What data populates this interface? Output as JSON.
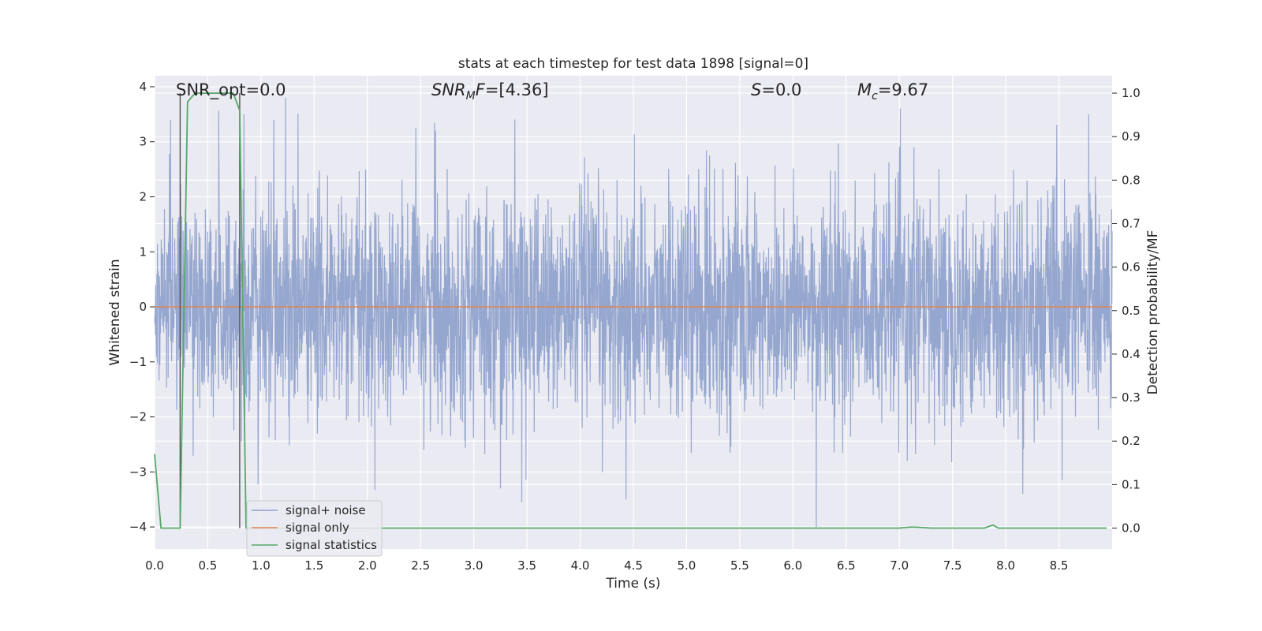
{
  "chart_data": {
    "type": "line",
    "title": "stats at each timestep for test data 1898 [signal=0]",
    "xlabel": "Time (s)",
    "ylabel": "Whitened strain",
    "ylabel_right": "Detection probability/MF",
    "xlim": [
      0.0,
      9.0
    ],
    "ylim": [
      -4.4,
      4.2
    ],
    "ylim_right": [
      -0.048,
      1.04
    ],
    "x_ticks": [
      0.0,
      0.5,
      1.0,
      1.5,
      2.0,
      2.5,
      3.0,
      3.5,
      4.0,
      4.5,
      5.0,
      5.5,
      6.0,
      6.5,
      7.0,
      7.5,
      8.0,
      8.5
    ],
    "x_tick_labels": [
      "0.0",
      "0.5",
      "1.0",
      "1.5",
      "2.0",
      "2.5",
      "3.0",
      "3.5",
      "4.0",
      "4.5",
      "5.0",
      "5.5",
      "6.0",
      "6.5",
      "7.0",
      "7.5",
      "8.0",
      "8.5"
    ],
    "y_ticks": [
      4,
      3,
      2,
      1,
      0,
      -1,
      -2,
      -3,
      -4
    ],
    "y_tick_labels": [
      "4",
      "3",
      "2",
      "1",
      "0",
      "−1",
      "−2",
      "−3",
      "−4"
    ],
    "y_ticks_right": [
      1.0,
      0.9,
      0.8,
      0.7,
      0.6,
      0.5,
      0.4,
      0.3,
      0.2,
      0.1,
      0.0
    ],
    "y_tick_labels_right": [
      "1.0",
      "0.9",
      "0.8",
      "0.7",
      "0.6",
      "0.5",
      "0.4",
      "0.3",
      "0.2",
      "0.1",
      "0.0"
    ],
    "grid": true,
    "legend_position": "lower left",
    "annotations": [
      {
        "segments": [
          {
            "text": "SNR_opt=0.0"
          }
        ]
      },
      {
        "segments": [
          {
            "text": "SNR",
            "italic": true
          },
          {
            "text": "M",
            "italic": true,
            "sub": true
          },
          {
            "text": "F",
            "italic": true
          },
          {
            "text": "=[4.36]"
          }
        ]
      },
      {
        "segments": [
          {
            "text": "S",
            "italic": true
          },
          {
            "text": "=0.0"
          }
        ]
      },
      {
        "segments": [
          {
            "text": "M",
            "italic": true
          },
          {
            "text": "c",
            "italic": true,
            "sub": true
          },
          {
            "text": "=9.67"
          }
        ]
      }
    ],
    "vertical_markers": [
      0.24,
      0.8
    ],
    "series": [
      {
        "name": "signal+ noise",
        "color": "#8da0cb",
        "axis": "left",
        "style": "dense noise, approx. uniform std 1, peaks near ±3.5, single spike to -4.0 near t=6.22",
        "sample_count": 3600,
        "notable_points": [
          {
            "x": 0.15,
            "y": 3.4
          },
          {
            "x": 0.84,
            "y": 3.5
          },
          {
            "x": 1.12,
            "y": 3.4
          },
          {
            "x": 1.23,
            "y": 3.8
          },
          {
            "x": 2.64,
            "y": 3.2
          },
          {
            "x": 3.25,
            "y": -3.3
          },
          {
            "x": 3.45,
            "y": -3.55
          },
          {
            "x": 4.43,
            "y": -3.5
          },
          {
            "x": 6.22,
            "y": -4.0
          },
          {
            "x": 8.53,
            "y": -3.15
          },
          {
            "x": 8.78,
            "y": 3.5
          }
        ]
      },
      {
        "name": "signal only",
        "color": "#dd8452",
        "axis": "left",
        "x": [
          0.0,
          9.0
        ],
        "y": [
          0.0,
          0.0
        ]
      },
      {
        "name": "signal statistics",
        "color": "#55a868",
        "axis": "right",
        "x": [
          0.0,
          0.06,
          0.12,
          0.18,
          0.24,
          0.31,
          0.38,
          0.5,
          0.62,
          0.74,
          0.8,
          0.86,
          0.92,
          1.0,
          2.0,
          3.0,
          4.0,
          5.0,
          6.0,
          7.0,
          7.1,
          7.15,
          7.3,
          7.8,
          7.88,
          7.93,
          8.0,
          8.5,
          8.95
        ],
        "y": [
          0.17,
          0.0,
          0.0,
          0.0,
          0.0,
          0.98,
          1.0,
          1.0,
          1.0,
          1.0,
          0.96,
          0.0,
          0.0,
          0.0,
          0.0,
          0.0,
          0.0,
          0.0,
          0.0,
          0.0,
          0.002,
          0.002,
          0.0,
          0.0,
          0.007,
          0.0,
          0.0,
          0.0,
          0.0
        ]
      }
    ]
  }
}
